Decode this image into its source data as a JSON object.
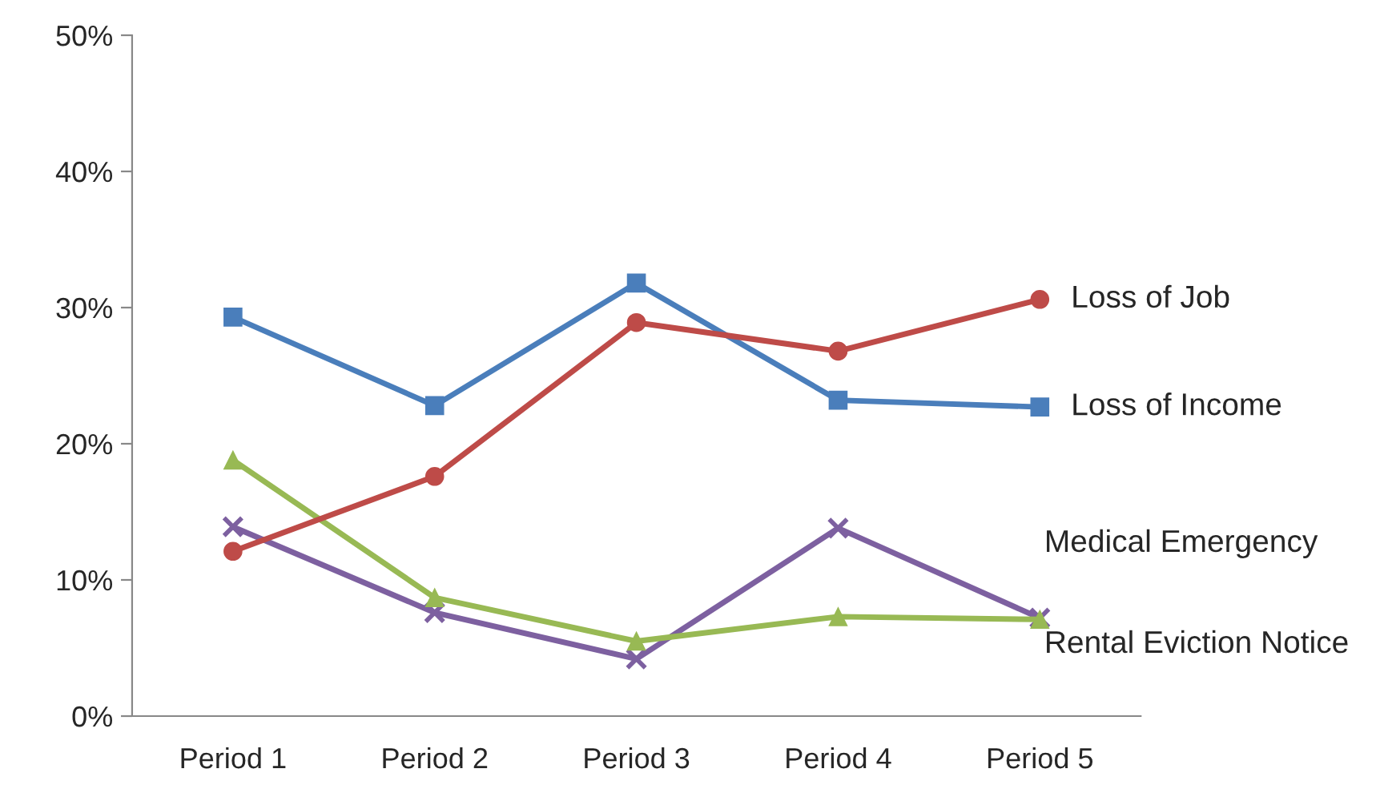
{
  "chart_data": {
    "type": "line",
    "categories": [
      "Period 1",
      "Period 2",
      "Period 3",
      "Period 4",
      "Period 5"
    ],
    "series": [
      {
        "name": "Loss of Job",
        "color": "#be4b48",
        "marker": "circle",
        "values": [
          12.1,
          17.6,
          28.9,
          26.8,
          30.6
        ]
      },
      {
        "name": "Loss of Income",
        "color": "#4a7ebb",
        "marker": "square",
        "values": [
          29.3,
          22.8,
          31.8,
          23.2,
          22.7
        ]
      },
      {
        "name": "Medical Emergency",
        "color": "#98b954",
        "marker": "triangle",
        "values": [
          18.8,
          8.7,
          5.5,
          7.3,
          7.1
        ]
      },
      {
        "name": "Rental Eviction Notice",
        "color": "#7d60a0",
        "marker": "cross",
        "values": [
          13.9,
          7.6,
          4.2,
          13.8,
          7.2
        ]
      }
    ],
    "ylim": [
      0,
      50
    ],
    "yticks": [
      {
        "value": 0,
        "label": "0%"
      },
      {
        "value": 10,
        "label": "10%"
      },
      {
        "value": 20,
        "label": "20%"
      },
      {
        "value": 30,
        "label": "30%"
      },
      {
        "value": 40,
        "label": "40%"
      },
      {
        "value": 50,
        "label": "50%"
      }
    ],
    "grid": false,
    "legend": false,
    "line_style": "solid"
  }
}
